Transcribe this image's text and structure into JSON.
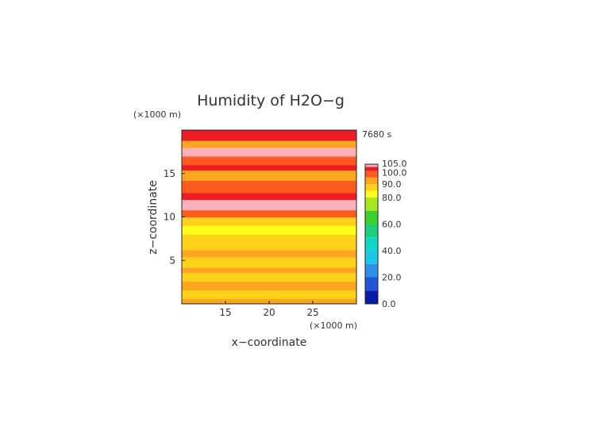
{
  "chart_data": {
    "type": "heatmap",
    "title": "Humidity of H2O−g",
    "xlabel": "x−coordinate",
    "ylabel": "z−coordinate",
    "x_unit": "(×1000 m)",
    "y_unit": "(×1000 m)",
    "time_label": "7680 s",
    "xlim": [
      10,
      30
    ],
    "ylim": [
      0,
      20
    ],
    "x_ticks": [
      "15",
      "20",
      "25"
    ],
    "y_ticks": [
      "5",
      "10",
      "15"
    ],
    "colorbar": {
      "range": [
        0,
        105
      ],
      "tick_labels": [
        "0.0",
        "20.0",
        "40.0",
        "60.0",
        "80.0",
        "90.0",
        "100.0",
        "105.0"
      ],
      "bands": [
        {
          "min": 0,
          "max": 10,
          "color": "#0a1aa6"
        },
        {
          "min": 10,
          "max": 20,
          "color": "#1f55d8"
        },
        {
          "min": 20,
          "max": 30,
          "color": "#2e8fe8"
        },
        {
          "min": 30,
          "max": 40,
          "color": "#1fc7e6"
        },
        {
          "min": 40,
          "max": 50,
          "color": "#10d8c8"
        },
        {
          "min": 50,
          "max": 60,
          "color": "#1fd07a"
        },
        {
          "min": 60,
          "max": 70,
          "color": "#3ad22a"
        },
        {
          "min": 70,
          "max": 80,
          "color": "#a8e820"
        },
        {
          "min": 80,
          "max": 85,
          "color": "#ffff1a"
        },
        {
          "min": 85,
          "max": 90,
          "color": "#ffd21a"
        },
        {
          "min": 90,
          "max": 95,
          "color": "#ffa51f"
        },
        {
          "min": 95,
          "max": 100,
          "color": "#ff5a1f"
        },
        {
          "min": 100,
          "max": 103,
          "color": "#ee1c25"
        },
        {
          "min": 103,
          "max": 105,
          "color": "#ffb0b8"
        },
        {
          "min": 105,
          "max": 106,
          "color": "#ffffff"
        }
      ]
    },
    "field_bands": [
      {
        "z": [
          0.0,
          0.6
        ],
        "color": "#ffa51f"
      },
      {
        "z": [
          0.6,
          1.6
        ],
        "color": "#ffd21a"
      },
      {
        "z": [
          1.6,
          2.6
        ],
        "color": "#ffa51f"
      },
      {
        "z": [
          2.6,
          3.6
        ],
        "color": "#ffd21a"
      },
      {
        "z": [
          3.6,
          4.2
        ],
        "color": "#ffa51f"
      },
      {
        "z": [
          4.2,
          5.4
        ],
        "color": "#ffd21a"
      },
      {
        "z": [
          5.4,
          6.2
        ],
        "color": "#ffa51f"
      },
      {
        "z": [
          6.2,
          7.0
        ],
        "color": "#ffd21a"
      },
      {
        "z": [
          7.0,
          8.0
        ],
        "color": "#ffd21a"
      },
      {
        "z": [
          8.0,
          9.0
        ],
        "color": "#ffff1a"
      },
      {
        "z": [
          9.0,
          10.0
        ],
        "color": "#ffd21a"
      },
      {
        "z": [
          10.0,
          10.8
        ],
        "color": "#ff5a1f"
      },
      {
        "z": [
          10.8,
          12.0
        ],
        "color": "#ffb0b8"
      },
      {
        "z": [
          12.0,
          12.8
        ],
        "color": "#ee1c25"
      },
      {
        "z": [
          12.8,
          14.2
        ],
        "color": "#ff5a1f"
      },
      {
        "z": [
          14.2,
          15.4
        ],
        "color": "#ffa51f"
      },
      {
        "z": [
          15.4,
          16.0
        ],
        "color": "#ee1c25"
      },
      {
        "z": [
          16.0,
          17.0
        ],
        "color": "#ff5a1f"
      },
      {
        "z": [
          17.0,
          18.0
        ],
        "color": "#ffb0b8"
      },
      {
        "z": [
          18.0,
          18.8
        ],
        "color": "#ffa51f"
      },
      {
        "z": [
          18.8,
          20.0
        ],
        "color": "#ee1c25"
      }
    ]
  }
}
